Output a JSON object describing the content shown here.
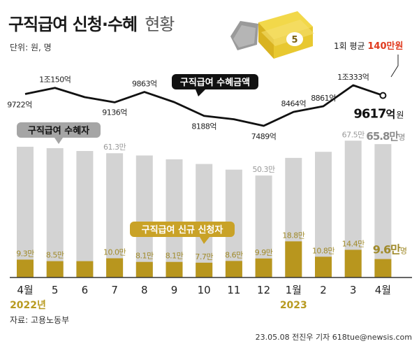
{
  "title": {
    "main": "구직급여 신청·수혜",
    "sub": "현황"
  },
  "unit_label": "단위: 원, 명",
  "source": "자료: 고용노동부",
  "credit": "23.05.08 전진우 기자 618tue@newsis.com",
  "avg_note": {
    "prefix": "1회 평균 ",
    "value": "140만원"
  },
  "colors": {
    "gray_bar": "#d3d3d3",
    "gold_bar": "#b8961e",
    "line": "#111111",
    "accent_red": "#e03a1e",
    "year": "#b89a20"
  },
  "chart_data": {
    "type": "bar+line",
    "categories": [
      "4월",
      "5",
      "6",
      "7",
      "8",
      "9",
      "10",
      "11",
      "12",
      "1월",
      "2",
      "3",
      "4월"
    ],
    "year_labels": [
      {
        "index": 0,
        "text": "2022년"
      },
      {
        "index": 9,
        "text": "2023"
      }
    ],
    "series": [
      {
        "name": "구직급여 수혜자",
        "type": "bar",
        "values": [
          64.5,
          63.8,
          62.4,
          61.3,
          60.2,
          58.3,
          56.0,
          53.2,
          50.3,
          59.0,
          62.0,
          67.5,
          65.8
        ],
        "labels": [
          "",
          "",
          "",
          "61.3만",
          "",
          "",
          "",
          "",
          "50.3만",
          "",
          "",
          "67.5만",
          "65.8만"
        ],
        "last_label_unit": "명"
      },
      {
        "name": "구직급여 신규 신청자",
        "type": "bar",
        "values": [
          9.3,
          8.5,
          8.5,
          10.0,
          8.1,
          8.1,
          7.7,
          8.6,
          9.9,
          18.8,
          10.8,
          14.4,
          9.6
        ],
        "labels": [
          "9.3만",
          "8.5만",
          "",
          "10.0만",
          "8.1만",
          "8.1만",
          "7.7만",
          "8.6만",
          "9.9만",
          "18.8만",
          "10.8만",
          "14.4만",
          "9.6만"
        ],
        "last_label_unit": "명"
      },
      {
        "name": "구직급여 수혜금액",
        "type": "line",
        "values": [
          9722,
          10150,
          9500,
          9136,
          9863,
          9150,
          8188,
          7950,
          7489,
          8464,
          8861,
          10333,
          9617
        ],
        "labels": [
          "9722억",
          "1조150억",
          "",
          "9136억",
          "9863억",
          "",
          "8188억",
          "",
          "7489억",
          "8464억",
          "8861억",
          "1조333억",
          "9617억"
        ],
        "last_label_unit": "원"
      }
    ]
  }
}
